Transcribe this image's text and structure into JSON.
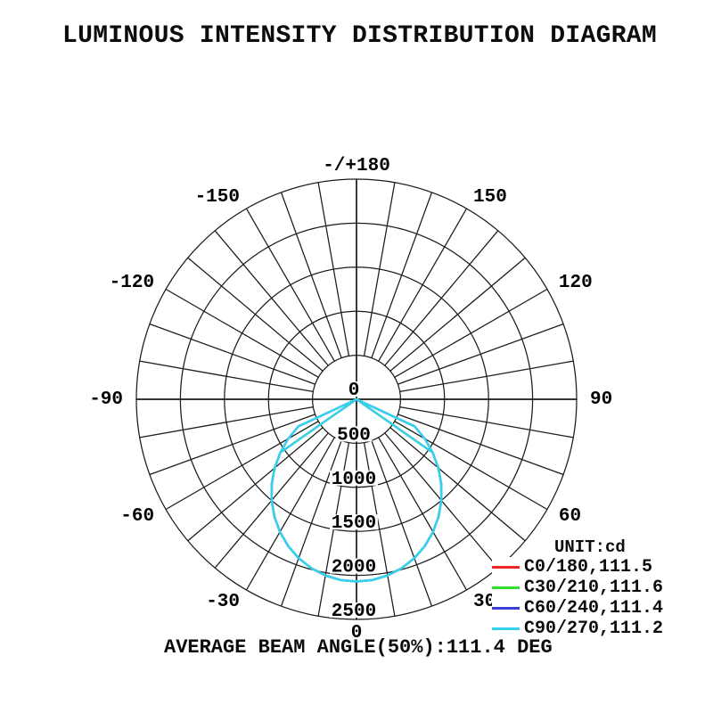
{
  "page": {
    "title": "LUMINOUS INTENSITY DISTRIBUTION DIAGRAM"
  },
  "chart_data": {
    "type": "polar",
    "title": "LUMINOUS INTENSITY DISTRIBUTION DIAGRAM",
    "unit_label": "UNIT:cd",
    "footer": "AVERAGE BEAM ANGLE(50%):111.4 DEG",
    "radial_axis_max": 2500,
    "radial_ticks": [
      {
        "value": 0,
        "label": "0"
      },
      {
        "value": 500,
        "label": "500"
      },
      {
        "value": 1000,
        "label": "1000"
      },
      {
        "value": 1500,
        "label": "1500"
      },
      {
        "value": 2000,
        "label": "2000"
      },
      {
        "value": 2500,
        "label": "2500"
      }
    ],
    "angle_grid_step_deg": 10,
    "angle_labels": [
      {
        "angle": 180,
        "label": "-/+180"
      },
      {
        "angle": 150,
        "label": "150"
      },
      {
        "angle": 120,
        "label": "120"
      },
      {
        "angle": 90,
        "label": "90"
      },
      {
        "angle": 60,
        "label": "60"
      },
      {
        "angle": 30,
        "label": "30"
      },
      {
        "angle": 0,
        "label": "0"
      },
      {
        "angle": -30,
        "label": "-30"
      },
      {
        "angle": -60,
        "label": "-60"
      },
      {
        "angle": -90,
        "label": "-90"
      },
      {
        "angle": -120,
        "label": "-120"
      },
      {
        "angle": -150,
        "label": "-150"
      }
    ],
    "peak_intensity_cd": 2070,
    "profiles": {
      "main": {
        "angles_deg": [
          0,
          5,
          10,
          15,
          20,
          25,
          30,
          35,
          40,
          45,
          50,
          55,
          60,
          65,
          70,
          75,
          80,
          85,
          90
        ],
        "intensity_cd": [
          2070,
          2060,
          2032,
          1985,
          1920,
          1838,
          1739,
          1626,
          1499,
          1361,
          1213,
          1056,
          0,
          0,
          0,
          0,
          0,
          0,
          0
        ]
      },
      "wide": {
        "angles_deg": [
          0,
          5,
          10,
          15,
          20,
          25,
          30,
          35,
          40,
          45,
          50,
          55,
          60,
          65,
          70,
          75,
          80,
          85,
          90
        ],
        "intensity_cd": [
          2070,
          2060,
          2032,
          1985,
          1920,
          1838,
          1739,
          1626,
          1499,
          1361,
          1213,
          1056,
          895,
          730,
          0,
          0,
          0,
          0,
          0
        ]
      }
    },
    "series": [
      {
        "name": "C0/180",
        "legend_label": "C0/180,111.5",
        "beam_angle_deg": 111.5,
        "color": "#f42525",
        "profiles": [
          "main"
        ]
      },
      {
        "name": "C30/210",
        "legend_label": "C30/210,111.6",
        "beam_angle_deg": 111.6,
        "color": "#2fe02f",
        "profiles": [
          "main"
        ]
      },
      {
        "name": "C60/240",
        "legend_label": "C60/240,111.4",
        "beam_angle_deg": 111.4,
        "color": "#3c3cd8",
        "profiles": [
          "wide"
        ]
      },
      {
        "name": "C90/270",
        "legend_label": "C90/270,111.2",
        "beam_angle_deg": 111.2,
        "color": "#35d2ef",
        "profiles": [
          "wide",
          "main"
        ]
      }
    ]
  }
}
